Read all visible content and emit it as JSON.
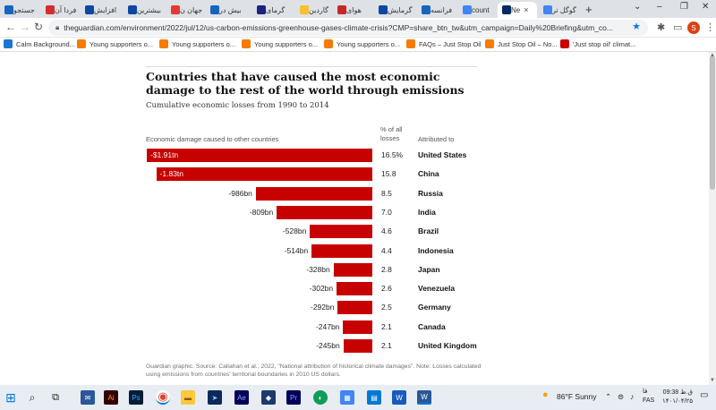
{
  "browser": {
    "tabs": [
      {
        "label": "جستجو",
        "color": "#1565c0"
      },
      {
        "label": "فردا آن",
        "color": "#d32f2f"
      },
      {
        "label": "افزایش",
        "color": "#0d47a1"
      },
      {
        "label": "بیشترین",
        "color": "#0d47a1"
      },
      {
        "label": "جهان ن",
        "color": "#e53935"
      },
      {
        "label": "بیش در",
        "color": "#1565c0"
      },
      {
        "label": "گرمای",
        "color": "#1a237e"
      },
      {
        "label": "گاردین",
        "color": "#fbc02d"
      },
      {
        "label": "هوای",
        "color": "#c62828"
      },
      {
        "label": "گرمایش",
        "color": "#0d47a1"
      },
      {
        "label": "فرانسه",
        "color": "#1565c0"
      },
      {
        "label": "count",
        "color": "#4285f4"
      },
      {
        "label": "Ne",
        "color": "#052962"
      },
      {
        "label": "گوگل تر",
        "color": "#4285f4"
      }
    ],
    "close_glyph": "×",
    "new_tab": "+",
    "url": "theguardian.com/environment/2022/jul/12/us-carbon-emissions-greenhouse-gases-climate-crisis?CMP=share_btn_tw&utm_campaign=Daily%20Briefing&utm_co...",
    "profile_initial": "S",
    "bookmarks": [
      {
        "label": "Calm Background...",
        "color": "#1976d2"
      },
      {
        "label": "Young supporters o...",
        "color": "#f57c00"
      },
      {
        "label": "Young supporters o...",
        "color": "#f57c00"
      },
      {
        "label": "Young supporters o...",
        "color": "#f57c00"
      },
      {
        "label": "Young supporters o...",
        "color": "#f57c00"
      },
      {
        "label": "FAQs – Just Stop Oil",
        "color": "#f57c00"
      },
      {
        "label": "Just Stop Oil – No...",
        "color": "#f57c00"
      },
      {
        "label": "'Just stop oil' climat...",
        "color": "#cc0000"
      }
    ]
  },
  "chart_data": {
    "type": "bar",
    "orientation": "horizontal",
    "title": "Countries that have caused the most economic damage to the rest of the world through emissions",
    "subtitle": "Cumulative economic losses from 1990 to 2014",
    "columns": {
      "bars": "Economic damage caused to other countries",
      "pct": "% of all losses",
      "country": "Attributed to"
    },
    "series": [
      {
        "values": [
          1910,
          1830,
          986,
          809,
          528,
          514,
          328,
          302,
          292,
          247,
          245
        ],
        "unit": "bn",
        "labels": [
          "-$1.91tn",
          "-1.83tn",
          "-986bn",
          "-809bn",
          "-528bn",
          "-514bn",
          "-328bn",
          "-302bn",
          "-292bn",
          "-247bn",
          "-245bn"
        ],
        "percent_labels": [
          "16.5%",
          "15.8",
          "8.5",
          "7.0",
          "4.6",
          "4.4",
          "2.8",
          "2.6",
          "2.5",
          "2.1",
          "2.1"
        ]
      }
    ],
    "categories": [
      "United States",
      "China",
      "Russia",
      "India",
      "Brazil",
      "Indonesia",
      "Japan",
      "Venezuela",
      "Germany",
      "Canada",
      "United Kingdom"
    ],
    "bar_color": "#c70000",
    "source": "Guardian graphic. Source: Callahan et al., 2022, \"National attribution of historical climate damages\". Note: Losses calculated using emissions from countries' territorial boundaries in 2010 US dollars."
  },
  "taskbar": {
    "weather": "86°F  Sunny",
    "lang": "FAS",
    "lang_short": "فا",
    "time": "09:38 ق.ظ",
    "date": "۱۴۰۱/۰۴/۲۵"
  }
}
